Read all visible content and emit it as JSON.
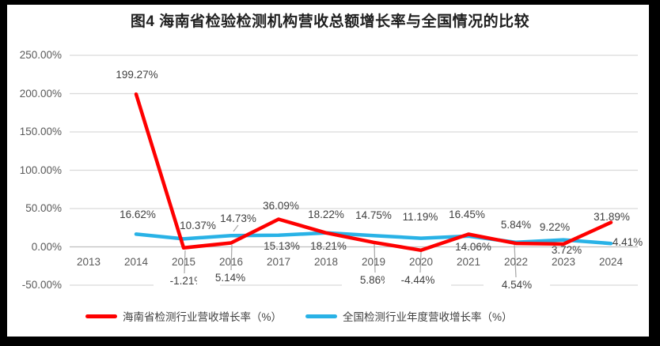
{
  "title": "图4 海南省检验检测机构营收总额增长率与全国情况的比较",
  "colors": {
    "hainan": "#FE0000",
    "national": "#29B2E6",
    "gridline": "#D9D9D9",
    "axis_line": "#BFBFBF",
    "leader": "#A6A6A6",
    "tick_text": "#595959",
    "label_text": "#3F3F3F",
    "frame": "#000000"
  },
  "chart_data": {
    "type": "line",
    "title": "图4 海南省检验检测机构营收总额增长率与全国情况的比较",
    "categories": [
      "2013",
      "2014",
      "2015",
      "2016",
      "2017",
      "2018",
      "2019",
      "2020",
      "2021",
      "2022",
      "2023",
      "2024"
    ],
    "series": [
      {
        "name": "海南省检测行业营收增长率（%）",
        "color_key": "hainan",
        "values": [
          null,
          199.27,
          -1.21,
          5.14,
          36.09,
          18.21,
          5.86,
          -4.44,
          16.45,
          4.54,
          3.72,
          31.89
        ],
        "labels": [
          null,
          "199.27%",
          "-1.21%",
          "5.14%",
          "36.09%",
          "18.21%",
          "5.86%",
          "-4.44%",
          "16.45%",
          "4.54%",
          "3.72%",
          "31.89%"
        ]
      },
      {
        "name": "全国检测行业年度营收增长率（%）",
        "color_key": "national",
        "values": [
          null,
          16.62,
          10.37,
          14.73,
          15.13,
          18.22,
          14.75,
          11.19,
          14.06,
          5.84,
          9.22,
          4.41
        ],
        "labels": [
          null,
          "16.62%",
          "10.37%",
          "14.73%",
          "15.13%",
          "18.22%",
          "14.75%",
          "11.19%",
          "14.06%",
          "5.84%",
          "9.22%",
          "4.41%"
        ]
      }
    ],
    "y_axis": {
      "ticks": [
        {
          "label": "250.00%",
          "value": 250
        },
        {
          "label": "200.00%",
          "value": 200
        },
        {
          "label": "150.00%",
          "value": 150
        },
        {
          "label": "100.00%",
          "value": 100
        },
        {
          "label": "50.00%",
          "value": 50
        },
        {
          "label": "0.00%",
          "value": 0
        },
        {
          "label": "-50.00%",
          "value": -50
        }
      ],
      "ylim": [
        -50,
        250
      ]
    },
    "grid": true,
    "legend_position": "bottom"
  }
}
